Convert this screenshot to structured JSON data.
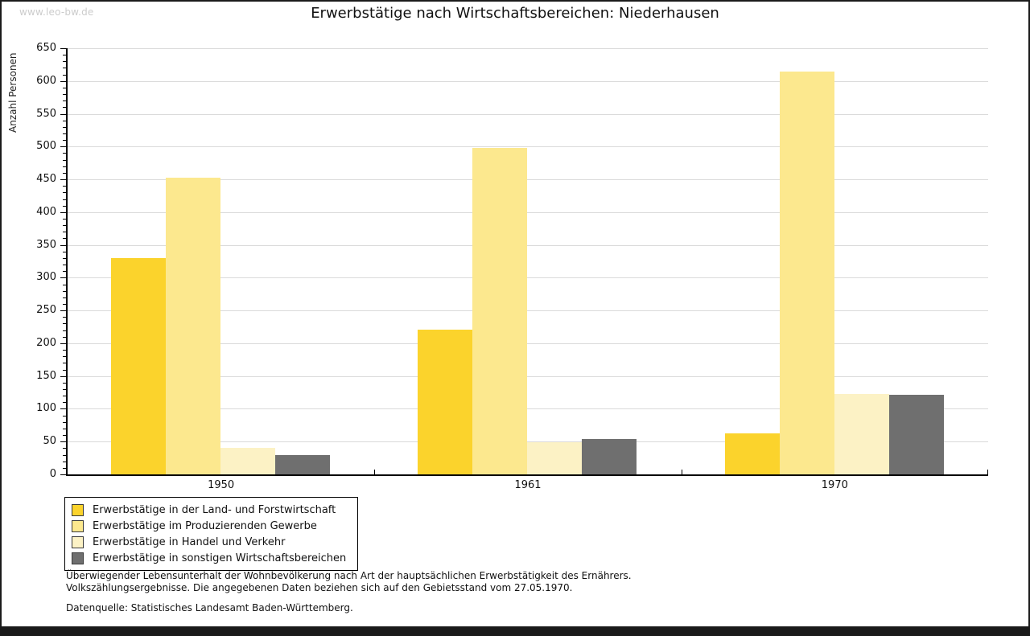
{
  "watermark": "www.leo-bw.de",
  "header": {
    "title": "Erwerbstätige nach Wirtschaftsbereichen: Niederhausen"
  },
  "chart_data": {
    "type": "bar",
    "title": "Erwerbstätige nach Wirtschaftsbereichen: Niederhausen",
    "xlabel": "",
    "ylabel": "Anzahl Personen",
    "ylim": [
      0,
      650
    ],
    "ytick_step": 50,
    "ytick_minor_step": 10,
    "grid": true,
    "legend_position": "bottom-left",
    "categories": [
      "1950",
      "1961",
      "1970"
    ],
    "series": [
      {
        "name": "Erwerbstätige in der Land- und Forstwirtschaft",
        "color": "#FBD32C",
        "values": [
          330,
          221,
          62
        ]
      },
      {
        "name": "Erwerbstätige im Produzierenden Gewerbe",
        "color": "#FCE88E",
        "values": [
          453,
          498,
          614
        ]
      },
      {
        "name": "Erwerbstätige in Handel und Verkehr",
        "color": "#FCF2C5",
        "values": [
          40,
          49,
          123
        ]
      },
      {
        "name": "Erwerbstätige in sonstigen Wirtschaftsbereichen",
        "color": "#6F6F6F",
        "values": [
          30,
          54,
          121
        ]
      }
    ]
  },
  "footnotes": {
    "line1": "Überwiegender Lebensunterhalt der Wohnbevölkerung nach Art der hauptsächlichen Erwerbstätigkeit des Ernährers.",
    "line2": "Volkszählungsergebnisse. Die angegebenen Daten beziehen sich auf den Gebietsstand vom 27.05.1970.",
    "source": "Datenquelle: Statistisches Landesamt Baden-Württemberg."
  }
}
